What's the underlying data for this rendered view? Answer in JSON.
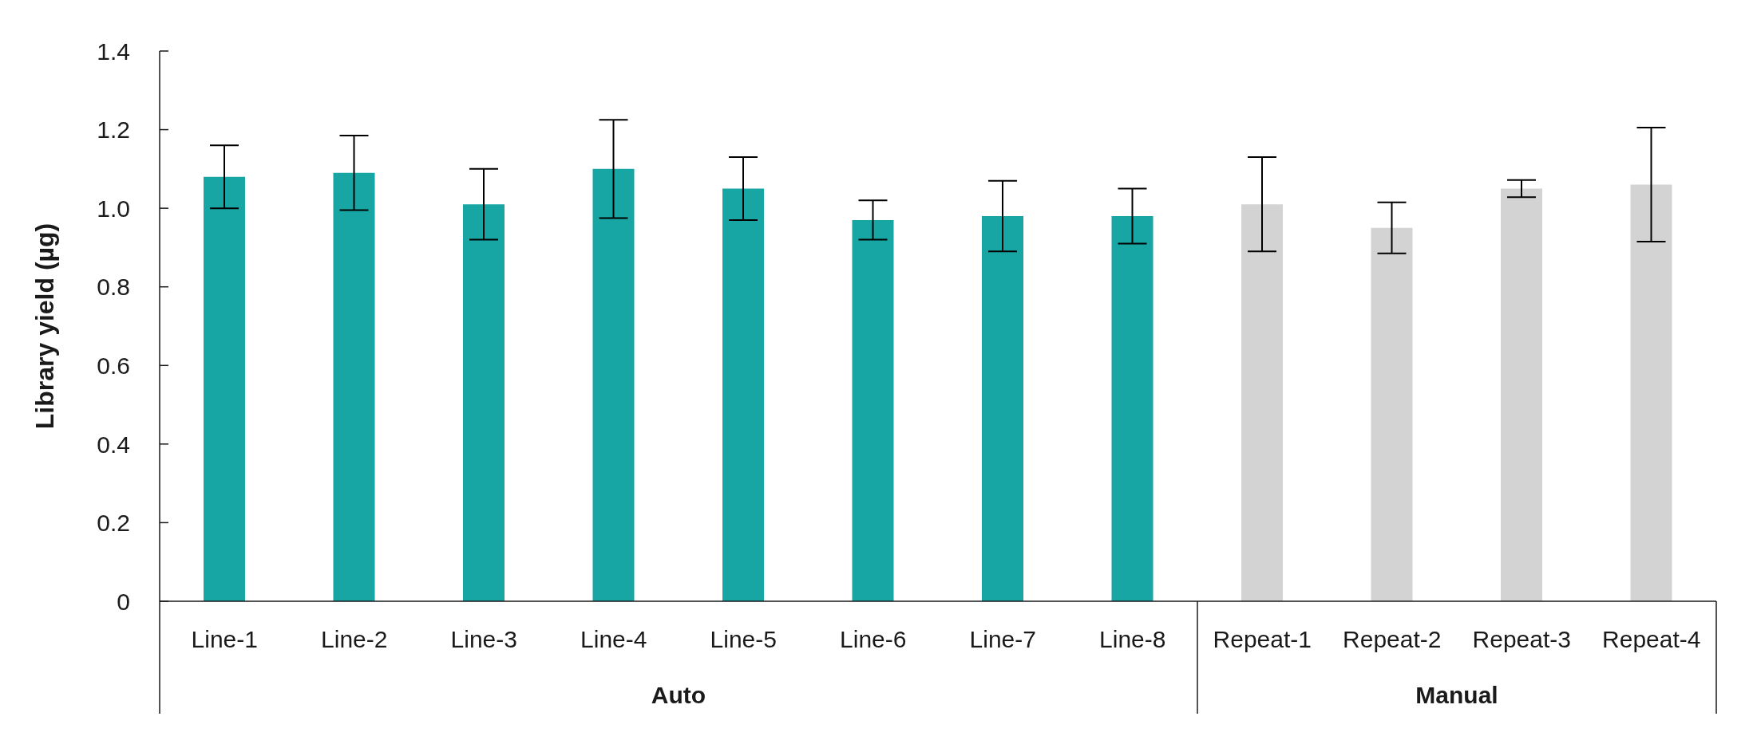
{
  "chart_data": {
    "type": "bar",
    "ylabel": "Library yield (µg)",
    "categories": [
      "Line-1",
      "Line-2",
      "Line-3",
      "Line-4",
      "Line-5",
      "Line-6",
      "Line-7",
      "Line-8",
      "Repeat-1",
      "Repeat-2",
      "Repeat-3",
      "Repeat-4"
    ],
    "values": [
      1.08,
      1.09,
      1.01,
      1.1,
      1.05,
      0.97,
      0.98,
      0.98,
      1.01,
      0.95,
      1.05,
      1.06
    ],
    "errors": [
      0.08,
      0.095,
      0.09,
      0.125,
      0.08,
      0.05,
      0.09,
      0.07,
      0.12,
      0.065,
      0.022,
      0.145
    ],
    "colors": [
      "#17a6a3",
      "#17a6a3",
      "#17a6a3",
      "#17a6a3",
      "#17a6a3",
      "#17a6a3",
      "#17a6a3",
      "#17a6a3",
      "#d3d3d3",
      "#d3d3d3",
      "#d3d3d3",
      "#d3d3d3"
    ],
    "annotations": [
      "Auto",
      "Manual"
    ],
    "ylim": [
      0,
      1.4
    ],
    "yticks": [
      0,
      0.2,
      0.4,
      0.6,
      0.8,
      {
        "value": 1,
        "label": "1.0"
      },
      1.2,
      1.4
    ]
  }
}
